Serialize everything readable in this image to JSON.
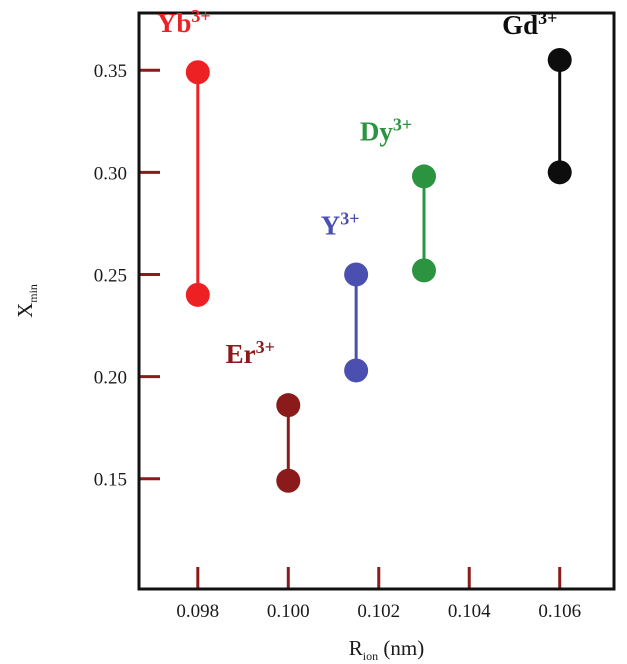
{
  "chart_data": {
    "type": "scatter",
    "xlabel": {
      "main": "R",
      "sub": "ion",
      "tail": " (nm)"
    },
    "ylabel": {
      "main": "X",
      "sub": "min"
    },
    "xlim": [
      0.0967,
      0.1072
    ],
    "ylim": [
      0.096,
      0.378
    ],
    "x_ticks": [
      0.098,
      0.1,
      0.102,
      0.104,
      0.106
    ],
    "x_tick_labels": [
      "0.098",
      "0.100",
      "",
      "",
      "0.106"
    ],
    "x_tick_labels_mid": [
      "",
      "",
      "0.102",
      "0.104",
      ""
    ],
    "y_ticks": [
      0.15,
      0.2,
      0.25,
      0.3,
      0.35
    ],
    "y_tick_labels": [
      "0.15",
      "0.20",
      "0.25",
      "0.30",
      "0.35"
    ],
    "grid": false,
    "series": [
      {
        "name": "Yb",
        "charge": "3+",
        "color": "#ed2024",
        "x": 0.098,
        "y_low": 0.24,
        "y_high": 0.349
      },
      {
        "name": "Er",
        "charge": "3+",
        "color": "#8b1a1a",
        "x": 0.1,
        "y_low": 0.149,
        "y_high": 0.186
      },
      {
        "name": "Y",
        "charge": "3+",
        "color": "#4a4fb0",
        "x": 0.1015,
        "y_low": 0.203,
        "y_high": 0.25
      },
      {
        "name": "Dy",
        "charge": "3+",
        "color": "#2c9440",
        "x": 0.103,
        "y_low": 0.252,
        "y_high": 0.298
      },
      {
        "name": "Gd",
        "charge": "3+",
        "color": "#0d0d0d",
        "x": 0.106,
        "y_low": 0.3,
        "y_high": 0.355
      }
    ]
  },
  "colors": {
    "axis": "#111111",
    "tick": "#8b1a1a"
  }
}
